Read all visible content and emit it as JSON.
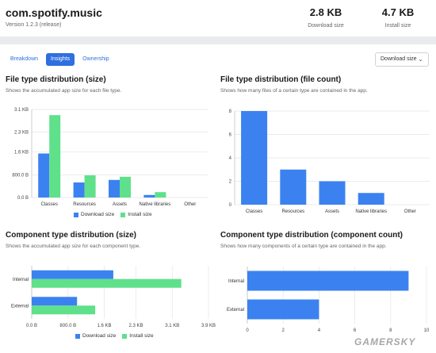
{
  "header": {
    "app_id": "com.spotify.music",
    "version": "Version 1.2.3 (release)",
    "download_size_value": "2.8 KB",
    "download_size_label": "Download size",
    "install_size_value": "4.7 KB",
    "install_size_label": "Install size"
  },
  "tabs": [
    {
      "label": "Breakdown",
      "active": false
    },
    {
      "label": "Insights",
      "active": true
    },
    {
      "label": "Ownership",
      "active": false
    }
  ],
  "size_selector": {
    "value": "Download size",
    "icon": "chevron-down-icon"
  },
  "colors": {
    "download": "#3b82f0",
    "install": "#5fe08a",
    "accent": "#2f6fdf"
  },
  "legend": {
    "download": "Download size",
    "install": "Install size"
  },
  "sections": {
    "file_size": {
      "title": "File type distribution (size)",
      "subtitle": "Shows the accumulated app size for each file type."
    },
    "file_count": {
      "title": "File type distribution (file count)",
      "subtitle": "Shows how many files of a certain type are contained in the app."
    },
    "comp_size": {
      "title": "Component type distribution (size)",
      "subtitle": "Shows the accumulated app size for each component type."
    },
    "comp_count": {
      "title": "Component type distribution (component count)",
      "subtitle": "Shows how many components of a certain type are contained in the app."
    }
  },
  "watermark": "GAMERSKY",
  "chart_data": [
    {
      "id": "file_size",
      "type": "bar",
      "orientation": "vertical",
      "categories": [
        "Classes",
        "Resources",
        "Assets",
        "Native libraries",
        "Other"
      ],
      "series": [
        {
          "name": "Download size",
          "values": [
            1.55,
            0.53,
            0.62,
            0.09,
            0
          ]
        },
        {
          "name": "Install size",
          "values": [
            2.9,
            0.78,
            0.73,
            0.19,
            0
          ]
        }
      ],
      "unit": "KB",
      "ylim": [
        0,
        3.1
      ],
      "yticks": [
        0,
        0.8,
        1.6,
        2.3,
        3.1
      ],
      "yticklabels": [
        "0.0 B",
        "800.0 B",
        "1.6 KB",
        "2.3 KB",
        "3.1 KB"
      ],
      "grid": true,
      "legend": "bottom"
    },
    {
      "id": "file_count",
      "type": "bar",
      "orientation": "vertical",
      "categories": [
        "Classes",
        "Resources",
        "Assets",
        "Native libraries",
        "Other"
      ],
      "series": [
        {
          "values": [
            8,
            3,
            2,
            1,
            0
          ]
        }
      ],
      "ylim": [
        0,
        8
      ],
      "yticks": [
        0,
        2,
        4,
        6,
        8
      ],
      "yticklabels": [
        "0",
        "2",
        "4",
        "6",
        "8"
      ],
      "grid": true
    },
    {
      "id": "comp_size",
      "type": "bar",
      "orientation": "horizontal",
      "categories": [
        "Internal",
        "External"
      ],
      "series": [
        {
          "name": "Download size",
          "values": [
            1.8,
            1.0
          ]
        },
        {
          "name": "Install size",
          "values": [
            3.3,
            1.4
          ]
        }
      ],
      "unit": "KB",
      "xlim": [
        0,
        3.9
      ],
      "xticks": [
        0,
        0.8,
        1.6,
        2.3,
        3.1,
        3.9
      ],
      "xticklabels": [
        "0.0 B",
        "800.0 B",
        "1.6 KB",
        "2.3 KB",
        "3.1 KB",
        "3.9 KB"
      ],
      "grid": true,
      "legend": "bottom"
    },
    {
      "id": "comp_count",
      "type": "bar",
      "orientation": "horizontal",
      "categories": [
        "Internal",
        "External"
      ],
      "series": [
        {
          "values": [
            9,
            4
          ]
        }
      ],
      "xlim": [
        0,
        10
      ],
      "xticks": [
        0,
        2,
        4,
        6,
        8,
        10
      ],
      "xticklabels": [
        "0",
        "2",
        "4",
        "6",
        "8",
        "10"
      ],
      "grid": true
    }
  ]
}
